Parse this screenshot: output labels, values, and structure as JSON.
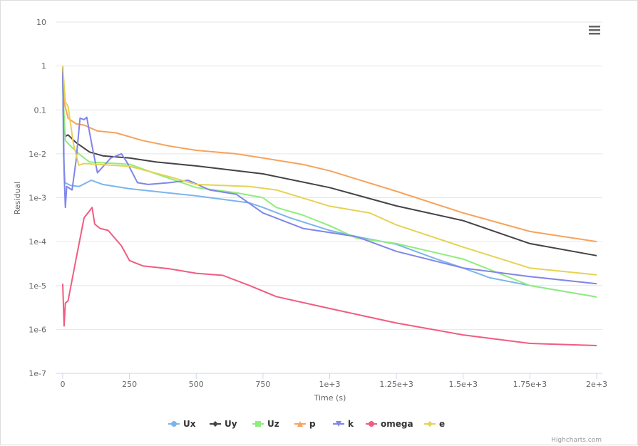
{
  "chart_data": {
    "type": "line",
    "title": "",
    "xlabel": "Time (s)",
    "ylabel": "Residual",
    "xlim": [
      0,
      2000
    ],
    "ylim": [
      1e-07,
      10
    ],
    "yscale": "log",
    "grid": "horizontal",
    "legend_placement": "bottom",
    "x_ticks": [
      {
        "v": 0,
        "label": "0"
      },
      {
        "v": 250,
        "label": "250"
      },
      {
        "v": 500,
        "label": "500"
      },
      {
        "v": 750,
        "label": "750"
      },
      {
        "v": 1000,
        "label": "1e+3"
      },
      {
        "v": 1250,
        "label": "1.25e+3"
      },
      {
        "v": 1500,
        "label": "1.5e+3"
      },
      {
        "v": 1750,
        "label": "1.75e+3"
      },
      {
        "v": 2000,
        "label": "2e+3"
      }
    ],
    "y_ticks": [
      {
        "v": 10,
        "label": "10"
      },
      {
        "v": 1,
        "label": "1"
      },
      {
        "v": 0.1,
        "label": "0.1"
      },
      {
        "v": 0.01,
        "label": "1e-2"
      },
      {
        "v": 0.001,
        "label": "1e-3"
      },
      {
        "v": 0.0001,
        "label": "1e-4"
      },
      {
        "v": 1e-05,
        "label": "1e-5"
      },
      {
        "v": 1e-06,
        "label": "1e-6"
      },
      {
        "v": 1e-07,
        "label": "1e-7"
      }
    ],
    "series": [
      {
        "name": "Ux",
        "color": "#7cb5ec",
        "marker": "circle",
        "points": [
          [
            0,
            1
          ],
          [
            3,
            0.01
          ],
          [
            8,
            0.0022
          ],
          [
            30,
            0.0019
          ],
          [
            61,
            0.0018
          ],
          [
            107,
            0.0025
          ],
          [
            150,
            0.002
          ],
          [
            250,
            0.0016
          ],
          [
            500,
            0.0011
          ],
          [
            700,
            0.00076
          ],
          [
            750,
            0.0006
          ],
          [
            850,
            0.00035
          ],
          [
            1000,
            0.00018
          ],
          [
            1100,
            0.00013
          ],
          [
            1250,
            8.7e-05
          ],
          [
            1400,
            4e-05
          ],
          [
            1500,
            2.5e-05
          ],
          [
            1600,
            1.5e-05
          ],
          [
            1750,
            1e-05
          ],
          [
            2000,
            5.5e-06
          ]
        ]
      },
      {
        "name": "Uy",
        "color": "#434348",
        "marker": "diamond",
        "points": [
          [
            0,
            1
          ],
          [
            3,
            0.05
          ],
          [
            10,
            0.025
          ],
          [
            20,
            0.027
          ],
          [
            50,
            0.018
          ],
          [
            100,
            0.011
          ],
          [
            150,
            0.009
          ],
          [
            250,
            0.008
          ],
          [
            350,
            0.0065
          ],
          [
            500,
            0.0053
          ],
          [
            750,
            0.0035
          ],
          [
            1000,
            0.0017
          ],
          [
            1250,
            0.00065
          ],
          [
            1500,
            0.0003
          ],
          [
            1750,
            9e-05
          ],
          [
            2000,
            4.8e-05
          ]
        ]
      },
      {
        "name": "Uz",
        "color": "#90ed7d",
        "marker": "square",
        "points": [
          [
            0,
            0.3
          ],
          [
            10,
            0.02
          ],
          [
            30,
            0.015
          ],
          [
            60,
            0.01
          ],
          [
            100,
            0.0065
          ],
          [
            250,
            0.0058
          ],
          [
            350,
            0.0035
          ],
          [
            500,
            0.0017
          ],
          [
            650,
            0.0013
          ],
          [
            750,
            0.001
          ],
          [
            800,
            0.0006
          ],
          [
            900,
            0.0004
          ],
          [
            1000,
            0.00023
          ],
          [
            1100,
            0.00012
          ],
          [
            1250,
            9e-05
          ],
          [
            1500,
            4e-05
          ],
          [
            1750,
            1e-05
          ],
          [
            2000,
            5.5e-06
          ]
        ]
      },
      {
        "name": "p",
        "color": "#f7a35c",
        "marker": "triangle",
        "points": [
          [
            0,
            1
          ],
          [
            5,
            0.15
          ],
          [
            20,
            0.065
          ],
          [
            50,
            0.048
          ],
          [
            80,
            0.045
          ],
          [
            130,
            0.033
          ],
          [
            200,
            0.03
          ],
          [
            300,
            0.02
          ],
          [
            400,
            0.015
          ],
          [
            500,
            0.012
          ],
          [
            650,
            0.01
          ],
          [
            750,
            0.008
          ],
          [
            900,
            0.0057
          ],
          [
            1000,
            0.0041
          ],
          [
            1250,
            0.0014
          ],
          [
            1500,
            0.00045
          ],
          [
            1750,
            0.00017
          ],
          [
            2000,
            0.0001
          ]
        ]
      },
      {
        "name": "k",
        "color": "#8085e9",
        "marker": "triangle-down",
        "points": [
          [
            0,
            1
          ],
          [
            5,
            0.0039
          ],
          [
            10,
            0.0006
          ],
          [
            15,
            0.0018
          ],
          [
            35,
            0.0015
          ],
          [
            50,
            0.007
          ],
          [
            65,
            0.065
          ],
          [
            80,
            0.06
          ],
          [
            90,
            0.068
          ],
          [
            110,
            0.015
          ],
          [
            130,
            0.0037
          ],
          [
            180,
            0.008
          ],
          [
            220,
            0.01
          ],
          [
            240,
            0.0065
          ],
          [
            280,
            0.0022
          ],
          [
            320,
            0.002
          ],
          [
            400,
            0.0022
          ],
          [
            470,
            0.0025
          ],
          [
            550,
            0.0015
          ],
          [
            650,
            0.0012
          ],
          [
            750,
            0.00045
          ],
          [
            900,
            0.0002
          ],
          [
            1100,
            0.00013
          ],
          [
            1250,
            6e-05
          ],
          [
            1500,
            2.5e-05
          ],
          [
            1750,
            1.6e-05
          ],
          [
            2000,
            1.1e-05
          ]
        ]
      },
      {
        "name": "omega",
        "color": "#f15c80",
        "marker": "circle",
        "points": [
          [
            0,
            1.1e-05
          ],
          [
            5,
            1.2e-06
          ],
          [
            10,
            4e-06
          ],
          [
            20,
            4.5e-06
          ],
          [
            50,
            4e-05
          ],
          [
            80,
            0.00035
          ],
          [
            100,
            0.0005
          ],
          [
            110,
            0.0006
          ],
          [
            120,
            0.00025
          ],
          [
            140,
            0.0002
          ],
          [
            170,
            0.00018
          ],
          [
            220,
            8e-05
          ],
          [
            250,
            3.7e-05
          ],
          [
            300,
            2.8e-05
          ],
          [
            400,
            2.4e-05
          ],
          [
            500,
            1.9e-05
          ],
          [
            600,
            1.7e-05
          ],
          [
            700,
            1e-05
          ],
          [
            800,
            5.6e-06
          ],
          [
            1000,
            3e-06
          ],
          [
            1250,
            1.4e-06
          ],
          [
            1500,
            7.5e-07
          ],
          [
            1750,
            4.8e-07
          ],
          [
            2000,
            4.3e-07
          ]
        ]
      },
      {
        "name": "e",
        "color": "#e4d354",
        "marker": "diamond",
        "points": [
          [
            0,
            1
          ],
          [
            10,
            0.15
          ],
          [
            20,
            0.12
          ],
          [
            40,
            0.017
          ],
          [
            60,
            0.0055
          ],
          [
            80,
            0.006
          ],
          [
            120,
            0.0058
          ],
          [
            250,
            0.0052
          ],
          [
            400,
            0.003
          ],
          [
            500,
            0.002
          ],
          [
            700,
            0.0018
          ],
          [
            800,
            0.0015
          ],
          [
            1000,
            0.00064
          ],
          [
            1150,
            0.00045
          ],
          [
            1250,
            0.00024
          ],
          [
            1500,
            7.5e-05
          ],
          [
            1750,
            2.5e-05
          ],
          [
            2000,
            1.75e-05
          ]
        ]
      }
    ]
  },
  "credits": "Highcharts.com",
  "menu_icon": "hamburger-menu-icon"
}
